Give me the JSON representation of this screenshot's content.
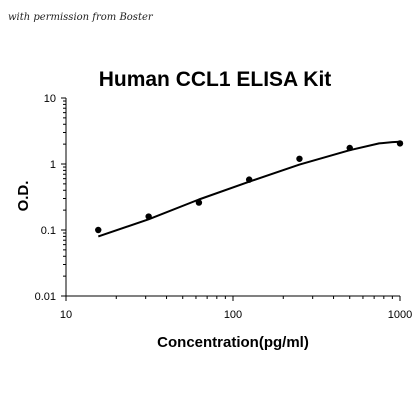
{
  "watermark": "with permission from Boster",
  "chart_data": {
    "type": "scatter",
    "title": "Human CCL1 ELISA Kit",
    "xlabel": "Concentration(pg/ml)",
    "ylabel": "O.D.",
    "x_scale": "log",
    "y_scale": "log",
    "xlim": [
      10,
      1000
    ],
    "ylim": [
      0.01,
      10
    ],
    "x_ticks": [
      10,
      100,
      1000
    ],
    "x_tick_labels": [
      "10",
      "100",
      "1000"
    ],
    "y_ticks": [
      0.01,
      0.1,
      1,
      10
    ],
    "y_tick_labels": [
      "0.01",
      "0.1",
      "1",
      "10"
    ],
    "grid": false,
    "series": [
      {
        "type": "scatter",
        "x": [
          15.6,
          31.25,
          62.5,
          125,
          250,
          500,
          1000
        ],
        "y": [
          0.1,
          0.16,
          0.26,
          0.58,
          1.2,
          1.75,
          2.05
        ]
      },
      {
        "type": "line",
        "x": [
          15.6,
          31.25,
          62.5,
          125,
          250,
          500,
          750,
          900,
          1000
        ],
        "y": [
          0.08,
          0.145,
          0.29,
          0.54,
          0.98,
          1.62,
          2.05,
          2.15,
          2.18
        ]
      }
    ]
  }
}
